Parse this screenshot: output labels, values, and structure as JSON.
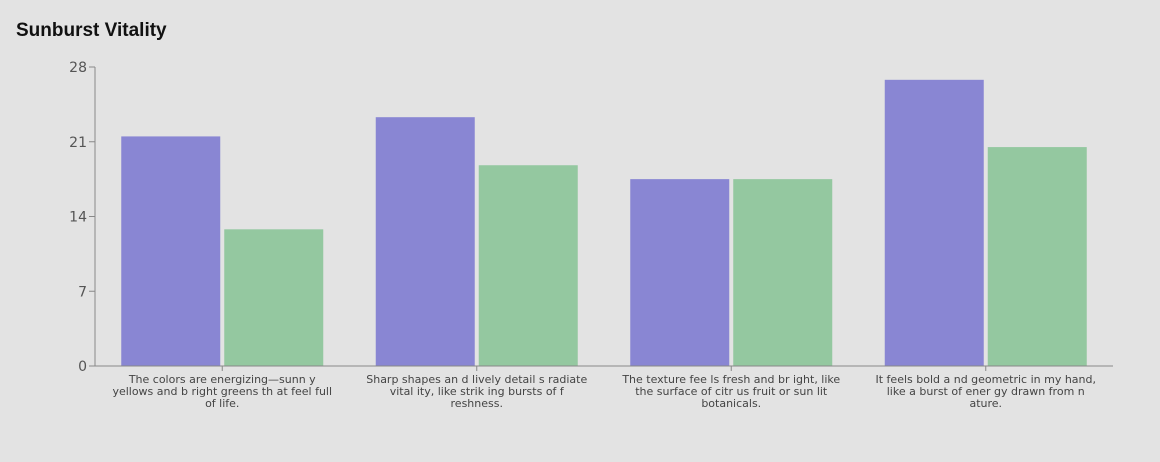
{
  "chart_data": {
    "type": "bar",
    "title": "Sunburst Vitality",
    "xlabel": "",
    "ylabel": "",
    "ylim": [
      0,
      28
    ],
    "yticks": [
      0,
      7,
      14,
      21,
      28
    ],
    "grid": false,
    "categories": [
      "The colors are energizing—sunn y yellows and b right greens th at feel full of life.",
      "Sharp shapes an d lively detail s radiate vital ity, like strik ing bursts of f reshness.",
      "The texture fee ls fresh and br ight, like the surface of citr us fruit or sun lit botanicals.",
      "It feels bold a nd geometric in my hand, like a burst of ener gy drawn from n ature."
    ],
    "series": [
      {
        "color": "#8986d3",
        "values": [
          21.5,
          23.3,
          17.5,
          26.8
        ]
      },
      {
        "color": "#94c8a0",
        "values": [
          12.8,
          18.8,
          17.5,
          20.5
        ]
      }
    ]
  }
}
